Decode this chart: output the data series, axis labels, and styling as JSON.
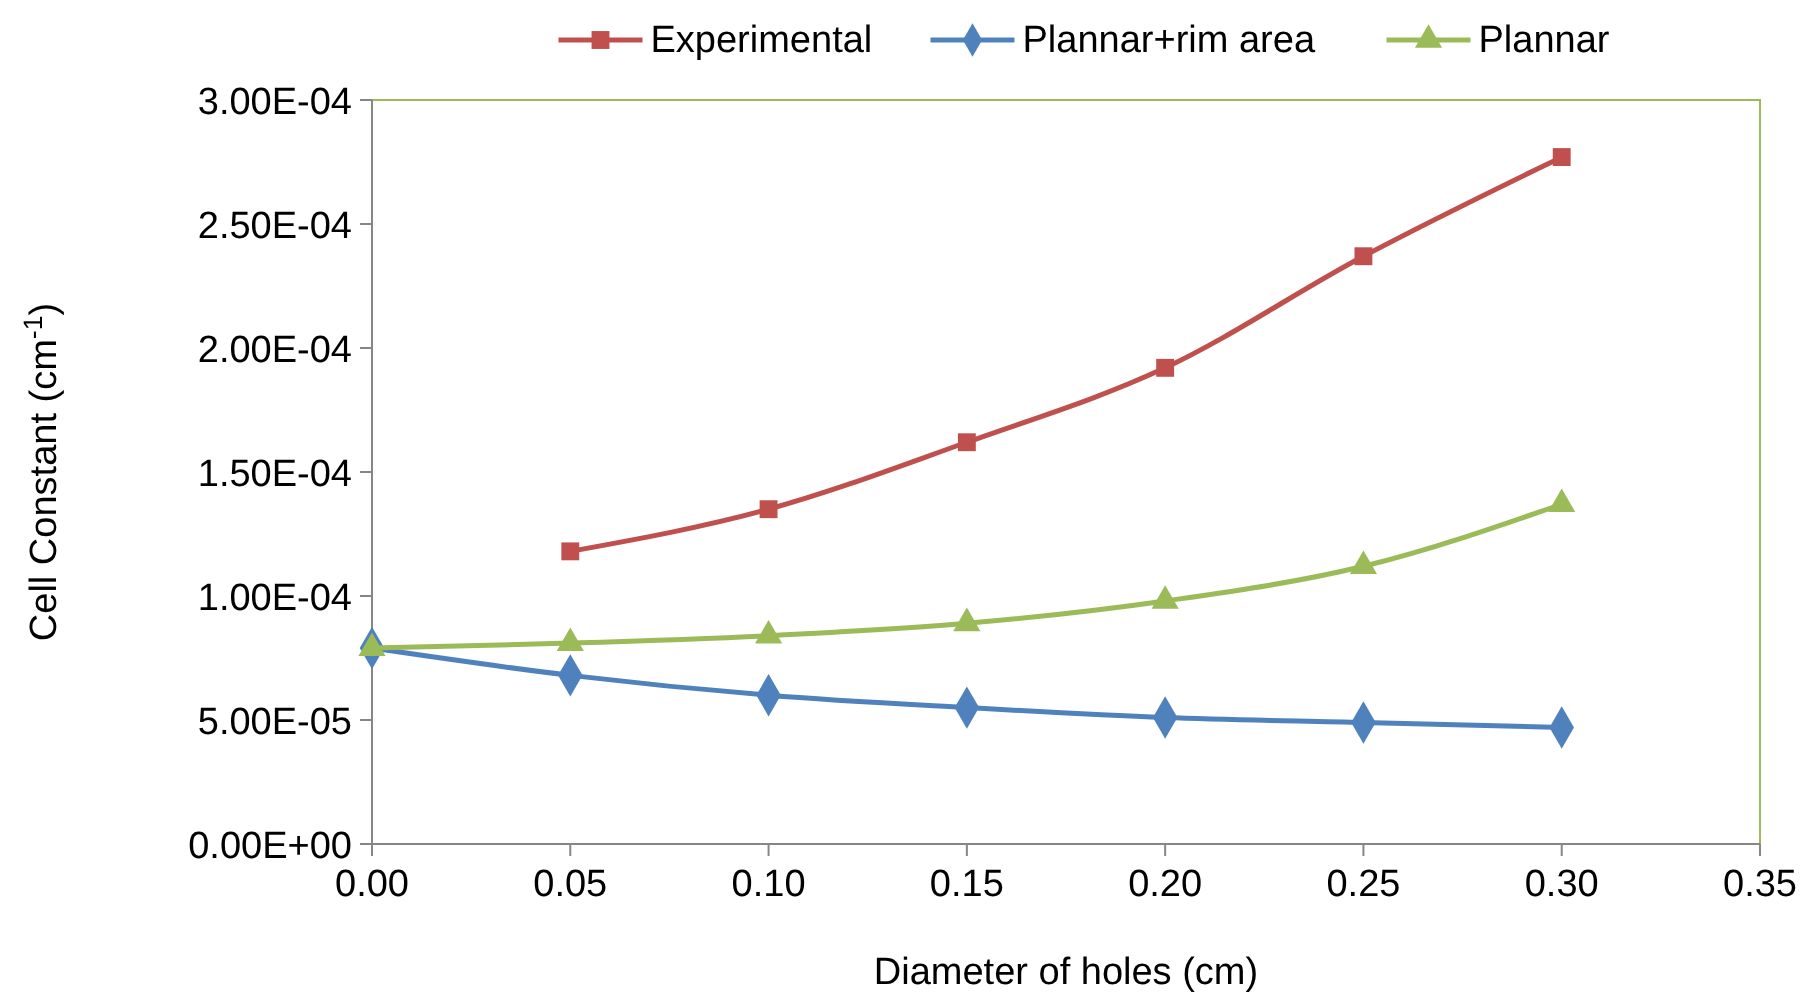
{
  "chart_data": {
    "type": "line",
    "xlabel": "Diameter of holes (cm)",
    "ylabel": "Cell Constant (cm$^{-1}$)",
    "xlim": [
      0,
      0.35
    ],
    "xticks": [
      {
        "value": 0,
        "label": "0.00"
      },
      {
        "value": 0.05,
        "label": "0.05"
      },
      {
        "value": 0.1,
        "label": "0.10"
      },
      {
        "value": 0.15,
        "label": "0.15"
      },
      {
        "value": 0.2,
        "label": "0.20"
      },
      {
        "value": 0.25,
        "label": "0.25"
      },
      {
        "value": 0.3,
        "label": "0.30"
      },
      {
        "value": 0.35,
        "label": "0.35"
      }
    ],
    "ylim": [
      0,
      0.0003
    ],
    "yticks": [
      {
        "value": 0,
        "label": "0.00E+00"
      },
      {
        "value": 5e-05,
        "label": "5.00E-05"
      },
      {
        "value": 0.0001,
        "label": "1.00E-04"
      },
      {
        "value": 0.00015,
        "label": "1.50E-04"
      },
      {
        "value": 0.0002,
        "label": "2.00E-04"
      },
      {
        "value": 0.00025,
        "label": "2.50E-04"
      },
      {
        "value": 0.0003,
        "label": "3.00E-04"
      }
    ],
    "legend": "top",
    "grid": false,
    "series": [
      {
        "name": "Experimental",
        "color": "#c0504d",
        "marker": "square",
        "x": [
          0.05,
          0.1,
          0.15,
          0.2,
          0.25,
          0.3
        ],
        "values": [
          0.000118,
          0.000135,
          0.000162,
          0.000192,
          0.000237,
          0.000277
        ]
      },
      {
        "name": "Plannar+rim area",
        "color": "#4f81bd",
        "marker": "diamond",
        "x": [
          0,
          0.05,
          0.1,
          0.15,
          0.2,
          0.25,
          0.3
        ],
        "values": [
          7.9e-05,
          6.8e-05,
          6e-05,
          5.5e-05,
          5.1e-05,
          4.9e-05,
          4.7e-05
        ]
      },
      {
        "name": "Plannar",
        "color": "#9bbb59",
        "marker": "triangle",
        "x": [
          0,
          0.05,
          0.1,
          0.15,
          0.2,
          0.25,
          0.3
        ],
        "values": [
          7.9e-05,
          8.1e-05,
          8.4e-05,
          8.9e-05,
          9.8e-05,
          0.000112,
          0.000137
        ]
      }
    ]
  }
}
